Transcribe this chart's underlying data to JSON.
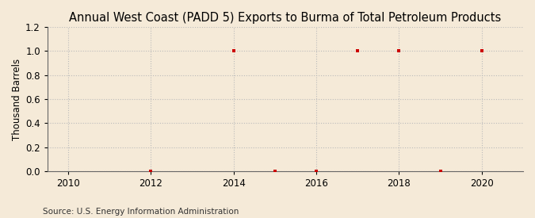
{
  "title": "Annual West Coast (PADD 5) Exports to Burma of Total Petroleum Products",
  "ylabel": "Thousand Barrels",
  "source": "Source: U.S. Energy Information Administration",
  "background_color": "#f5ead8",
  "x_data": [
    2012,
    2014,
    2015,
    2016,
    2017,
    2018,
    2019,
    2020
  ],
  "y_data": [
    0,
    1.0,
    0,
    0,
    1.0,
    1.0,
    0,
    1.0
  ],
  "xlim": [
    2009.5,
    2021.0
  ],
  "ylim": [
    0,
    1.2
  ],
  "xticks": [
    2010,
    2012,
    2014,
    2016,
    2018,
    2020
  ],
  "yticks": [
    0.0,
    0.2,
    0.4,
    0.6,
    0.8,
    1.0,
    1.2
  ],
  "marker_color": "#cc0000",
  "marker_style": "s",
  "marker_size": 3,
  "grid_color": "#bbbbbb",
  "grid_linestyle": ":",
  "title_fontsize": 10.5,
  "label_fontsize": 8.5,
  "tick_fontsize": 8.5,
  "source_fontsize": 7.5
}
